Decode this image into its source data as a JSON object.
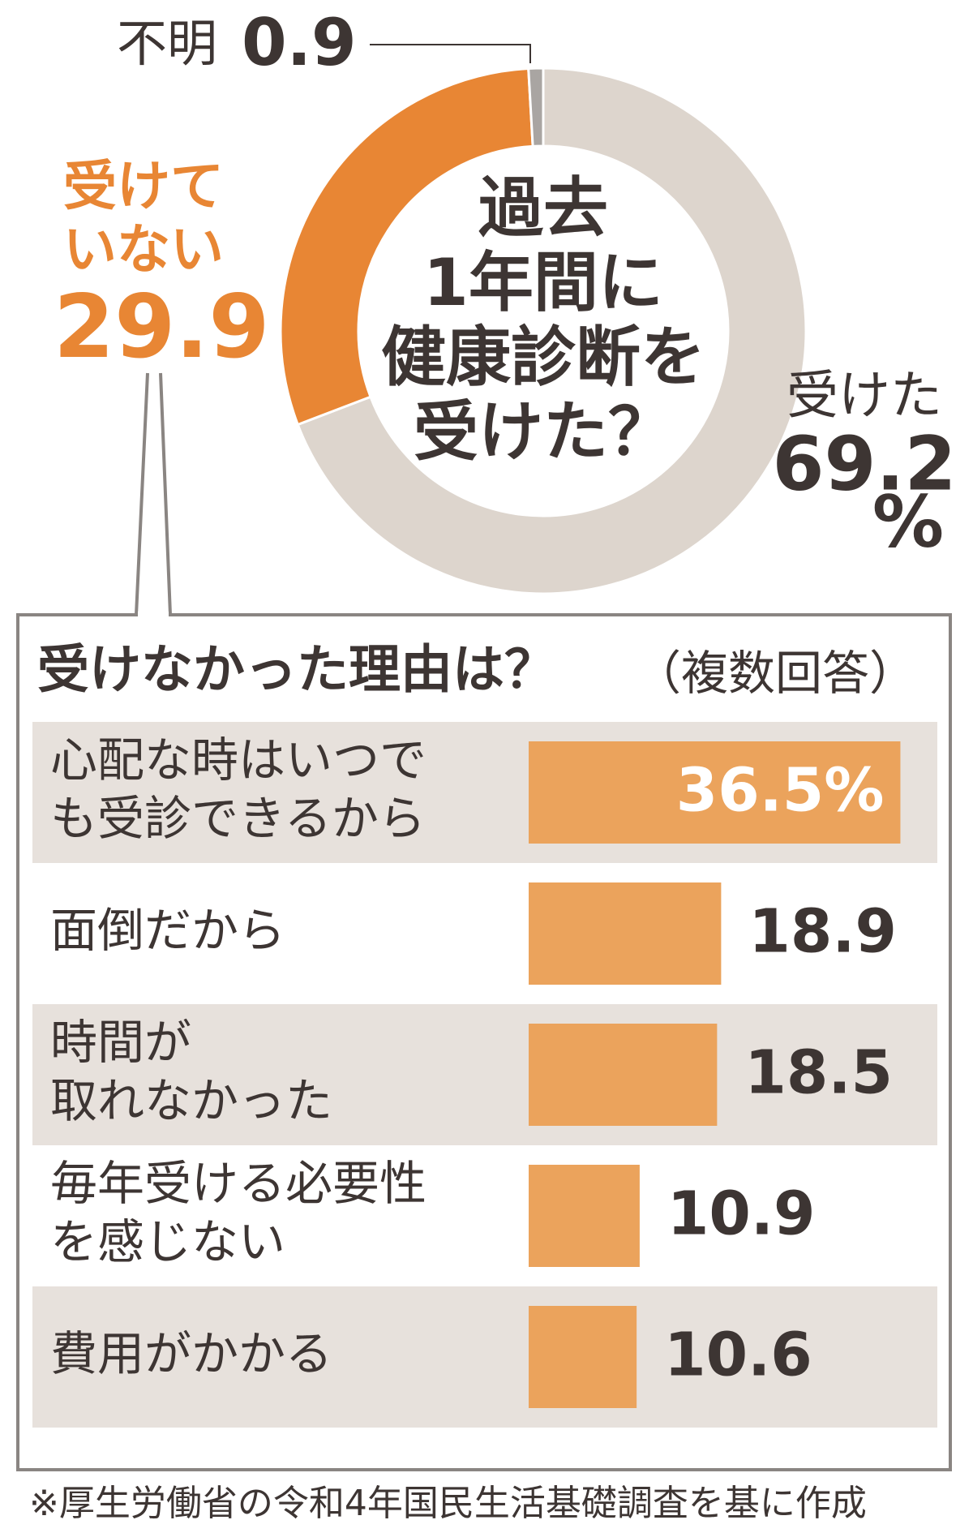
{
  "chart_data": [
    {
      "type": "donut",
      "title": [
        "過去",
        "1年間に",
        "健康診断を",
        "受けた？"
      ],
      "categories": [
        [
          "受けた"
        ],
        [
          "受けて",
          "いない"
        ],
        [
          "不明"
        ]
      ],
      "values": [
        69.2,
        29.9,
        0.9
      ],
      "unit": "%",
      "colors": [
        "#ddd5cd",
        "#e88634",
        "#a9a5a2"
      ]
    },
    {
      "type": "barh",
      "title": "受けなかった理由は？",
      "subtitle": "（複数回答）",
      "categories": [
        [
          "心配な時はいつで",
          "も受診できるから"
        ],
        [
          "面倒だから"
        ],
        [
          "時間が",
          "取れなかった"
        ],
        [
          "毎年受ける必要性",
          "を感じない"
        ],
        [
          "費用がかかる"
        ]
      ],
      "values": [
        36.5,
        18.9,
        18.5,
        10.9,
        10.6
      ],
      "value_labels": [
        "36.5%",
        "18.9",
        "18.5",
        "10.9",
        "10.6"
      ],
      "color": "#eba35c"
    }
  ],
  "footnote": "※厚生労働省の令和4年国民生活基礎調査を基に作成"
}
